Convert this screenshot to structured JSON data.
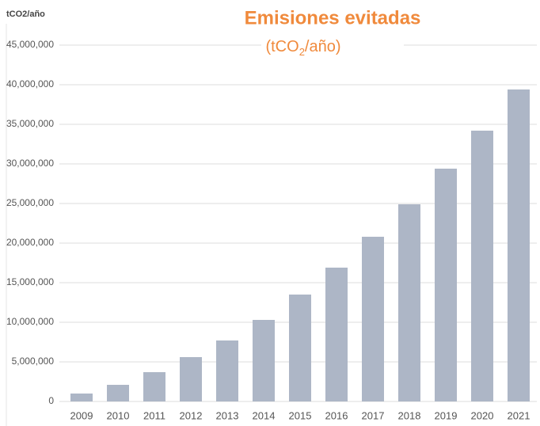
{
  "chart_data": {
    "type": "bar",
    "title": "Emisiones evitadas",
    "subtitle": {
      "before": "(tCO",
      "sub": "2",
      "after": "/año)"
    },
    "y_label": "tCO2/año",
    "categories": [
      "2009",
      "2010",
      "2011",
      "2012",
      "2013",
      "2014",
      "2015",
      "2016",
      "2017",
      "2018",
      "2019",
      "2020",
      "2021"
    ],
    "values": [
      1000000,
      2100000,
      3700000,
      5600000,
      7700000,
      10300000,
      13500000,
      16900000,
      20800000,
      24900000,
      29400000,
      34200000,
      39400000
    ],
    "color": "#adb6c6",
    "title_color": "#f08a3c",
    "ylim": [
      0,
      45000000
    ],
    "yticks": [
      0,
      {
        "value": 5000000,
        "label": "5,000,000"
      },
      {
        "value": 10000000,
        "label": "10,000,000"
      },
      {
        "value": 15000000,
        "label": "15,000,000"
      },
      {
        "value": 20000000,
        "label": "20,000,000"
      },
      {
        "value": 25000000,
        "label": "25,000,000"
      },
      {
        "value": 30000000,
        "label": "30,000,000"
      },
      {
        "value": 35000000,
        "label": "35,000,000"
      },
      {
        "value": 40000000,
        "label": "40,000,000"
      },
      {
        "value": 45000000,
        "label": "45,000,000"
      }
    ],
    "grid": true
  }
}
